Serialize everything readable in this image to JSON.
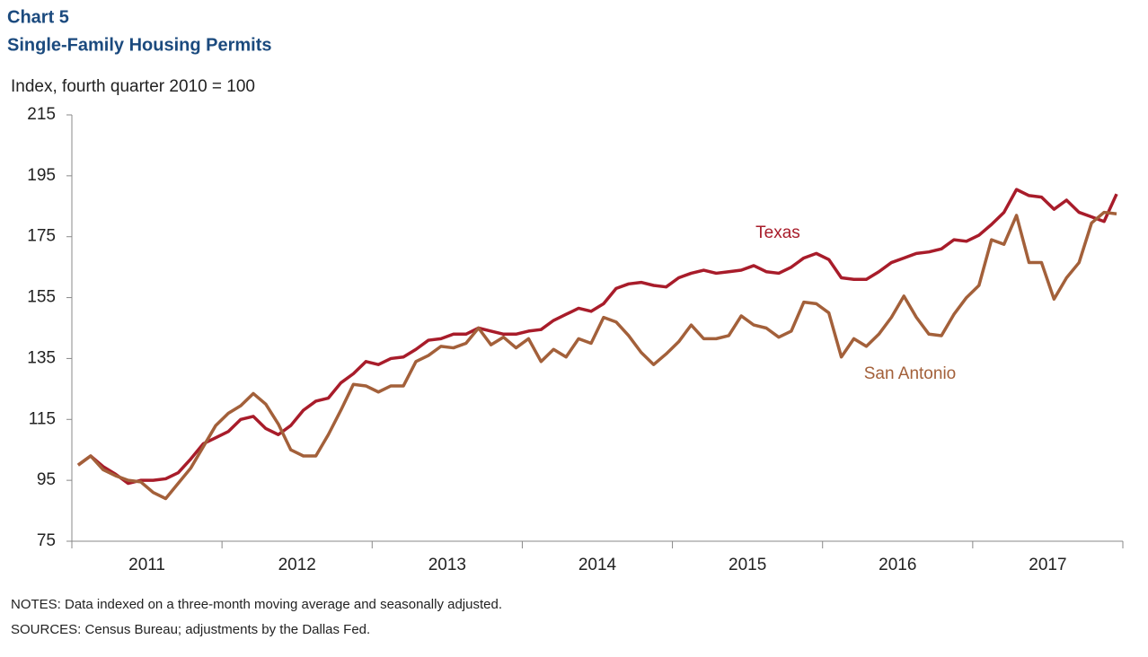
{
  "chart_data": {
    "type": "line",
    "title": "Chart 5",
    "subtitle": "Single-Family Housing Permits",
    "y_axis_label": "Index, fourth quarter 2010 = 100",
    "notes": "NOTES: Data indexed on a three-month moving average and seasonally adjusted.",
    "sources": "SOURCES: Census Bureau; adjustments by the Dallas Fed.",
    "categories": [
      "2011",
      null,
      null,
      null,
      null,
      null,
      null,
      null,
      null,
      null,
      null,
      null,
      "2012",
      null,
      null,
      null,
      null,
      null,
      null,
      null,
      null,
      null,
      null,
      null,
      "2013",
      null,
      null,
      null,
      null,
      null,
      null,
      null,
      null,
      null,
      null,
      null,
      "2014",
      null,
      null,
      null,
      null,
      null,
      null,
      null,
      null,
      null,
      null,
      null,
      "2015",
      null,
      null,
      null,
      null,
      null,
      null,
      null,
      null,
      null,
      null,
      null,
      "2016",
      null,
      null,
      null,
      null,
      null,
      null,
      null,
      null,
      null,
      null,
      null,
      "2017",
      null,
      null,
      null,
      null,
      null,
      null,
      null,
      null,
      null,
      null,
      null
    ],
    "series": [
      {
        "name": "Texas",
        "color": "#a81c2a",
        "values": [
          100,
          103,
          99.5,
          97,
          94,
          95,
          95,
          95.5,
          97.5,
          102,
          107,
          109,
          111,
          115,
          116,
          112,
          110,
          113,
          118,
          121,
          122,
          127,
          130,
          134,
          133,
          135,
          135.5,
          138,
          141,
          141.5,
          143,
          143,
          145,
          144,
          143,
          143,
          144,
          144.5,
          147.5,
          149.5,
          151.5,
          150.5,
          153,
          158,
          159.5,
          160,
          159,
          158.5,
          161.5,
          163,
          164,
          163,
          163.5,
          164,
          165.5,
          163.5,
          163,
          165,
          168,
          169.5,
          167.5,
          161.5,
          161,
          161,
          163.5,
          166.5,
          168,
          169.5,
          170,
          171,
          174,
          173.5,
          175.5,
          179,
          183,
          190.5,
          188.5,
          188,
          184,
          187,
          183,
          181.5,
          180,
          189
        ]
      },
      {
        "name": "San Antonio",
        "color": "#a3603a",
        "values": [
          100,
          103,
          98.5,
          96.5,
          95,
          94.5,
          91,
          89,
          94,
          99,
          106,
          113,
          117,
          119.5,
          123.5,
          120,
          113.5,
          105,
          103,
          103,
          110,
          118,
          126.5,
          126,
          124,
          126,
          126,
          134,
          136,
          139,
          138.5,
          140,
          145,
          139.5,
          142,
          138.5,
          141.5,
          134,
          138,
          135.5,
          141.5,
          140,
          148.5,
          147,
          142.5,
          137,
          133,
          136.5,
          140.5,
          146,
          141.5,
          141.5,
          142.5,
          149,
          146,
          145,
          142,
          144,
          153.5,
          153,
          150,
          135.5,
          141.5,
          139,
          143,
          148.5,
          155.5,
          148.5,
          143,
          142.5,
          149.5,
          155,
          159,
          174,
          172.5,
          182,
          166.5,
          166.5,
          154.5,
          161.5,
          166.5,
          179.5,
          183,
          182.5
        ]
      }
    ],
    "ylim": [
      75,
      215
    ],
    "yticks": [
      75,
      95,
      115,
      135,
      155,
      175,
      195,
      215
    ],
    "grid": false
  }
}
